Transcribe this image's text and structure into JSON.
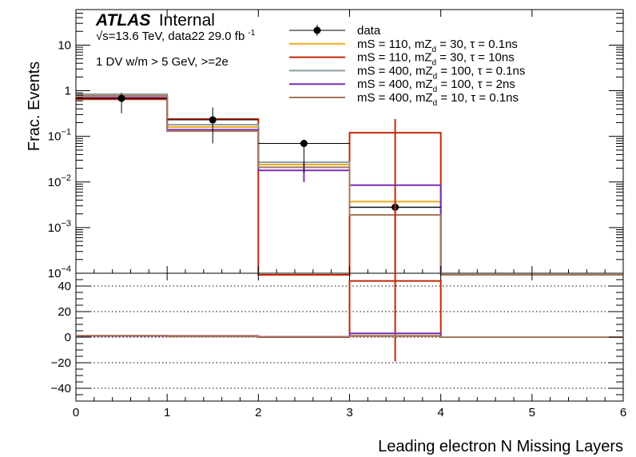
{
  "header": {
    "experiment": "ATLAS",
    "status": "Internal",
    "energy_line": "√s=13.6 TeV, data22 29.0 fb",
    "lumi_exp": "-1",
    "selection": "1 DV w/m > 5 GeV, >=2e"
  },
  "chart_data": {
    "type": "step-histogram",
    "xlabel": "Leading electron N Missing Layers",
    "ylabel": "Frac. Events",
    "xlim": [
      0,
      6
    ],
    "x_ticks": [
      "0",
      "1",
      "2",
      "3",
      "4",
      "5",
      "6"
    ],
    "bin_edges": [
      0,
      1,
      2,
      3,
      4,
      5,
      6
    ],
    "upper": {
      "yscale": "log",
      "ylim": [
        0.0001,
        60
      ],
      "y_ticks": [
        {
          "base": "10",
          "exp": "",
          "value": 10
        },
        {
          "base": "1",
          "exp": "",
          "value": 1
        },
        {
          "base": "10",
          "exp": "−1",
          "value": 0.1
        },
        {
          "base": "10",
          "exp": "−2",
          "value": 0.01
        },
        {
          "base": "10",
          "exp": "−3",
          "value": 0.001
        },
        {
          "base": "10",
          "exp": "−4",
          "value": 0.0001
        }
      ],
      "data": {
        "name": "data",
        "x": [
          0.5,
          1.5,
          2.5,
          3.5
        ],
        "y": [
          0.68,
          0.23,
          0.07,
          0.0028
        ],
        "yerr_low": [
          0.36,
          0.16,
          0.054,
          0.0028
        ],
        "yerr_high": [
          0.22,
          0.2,
          0.008,
          0.0001
        ]
      },
      "signal_series": [
        {
          "name": "mS = 110, mZ_d = 30, τ = 0.1ns",
          "label_parts": [
            "mS = 110, mZ",
            "d",
            " = 30, τ = 0.1ns"
          ],
          "color": "#f0ab1e",
          "values": [
            0.72,
            0.16,
            0.024,
            0.0037,
            0,
            0
          ]
        },
        {
          "name": "mS = 110, mZ_d = 30, τ = 10ns",
          "label_parts": [
            "mS = 110, mZ",
            "d",
            " = 30, τ = 10ns"
          ],
          "color": "#c22a0a",
          "values": [
            0.65,
            0.24,
            0.0,
            0.12,
            0,
            0
          ],
          "bin_errors": [
            0,
            0,
            0,
            0.12,
            0,
            0
          ]
        },
        {
          "name": "mS = 400, mZ_d = 100, τ = 0.1ns",
          "label_parts": [
            "mS = 400, mZ",
            "d",
            " = 100, τ = 0.1ns"
          ],
          "color": "#8d9ba1",
          "values": [
            0.84,
            0.18,
            0.027,
            0.0028,
            0,
            0
          ]
        },
        {
          "name": "mS = 400, mZ_d = 100, τ = 2ns",
          "label_parts": [
            "mS = 400, mZ",
            "d",
            " = 100, τ = 2ns"
          ],
          "color": "#7a2fb8",
          "values": [
            0.7,
            0.14,
            0.018,
            0.0085,
            0,
            0
          ],
          "bin_errors": [
            0,
            0,
            0.008,
            0,
            0,
            0
          ]
        },
        {
          "name": "mS = 400, mZ_d = 10, τ = 0.1ns",
          "label_parts": [
            "mS = 400, mZ",
            "d",
            " = 10, τ = 0.1ns"
          ],
          "color": "#a8775a",
          "values": [
            0.78,
            0.13,
            0.021,
            0.0019,
            0,
            0
          ]
        }
      ]
    },
    "lower": {
      "ylim": [
        -50,
        50
      ],
      "y_ticks": [
        40,
        20,
        0,
        -20,
        -40
      ],
      "gridlines": [
        40,
        20,
        0,
        -20,
        -40
      ],
      "series": [
        {
          "name": "mS = 110, mZ_d = 30, τ = 0.1ns",
          "color": "#f0ab1e",
          "values": [
            1.1,
            0.7,
            0.35,
            1.3,
            0,
            0
          ]
        },
        {
          "name": "mS = 110, mZ_d = 30, τ = 10ns",
          "color": "#c22a0a",
          "values": [
            0.95,
            1.05,
            0,
            44,
            0,
            0
          ],
          "bin_errors": [
            0,
            0,
            0,
            63,
            0,
            0
          ]
        },
        {
          "name": "mS = 400, mZ_d = 100, τ = 0.1ns",
          "color": "#8d9ba1",
          "values": [
            1.25,
            0.8,
            0.4,
            1.0,
            0,
            0
          ]
        },
        {
          "name": "mS = 400, mZ_d = 100, τ = 2ns",
          "color": "#7a2fb8",
          "values": [
            1.0,
            0.6,
            0.26,
            3.0,
            0,
            0
          ]
        },
        {
          "name": "mS = 400, mZ_d = 10, τ = 0.1ns",
          "color": "#a8775a",
          "values": [
            1.15,
            0.57,
            0.3,
            0.7,
            0,
            0
          ]
        }
      ]
    }
  }
}
